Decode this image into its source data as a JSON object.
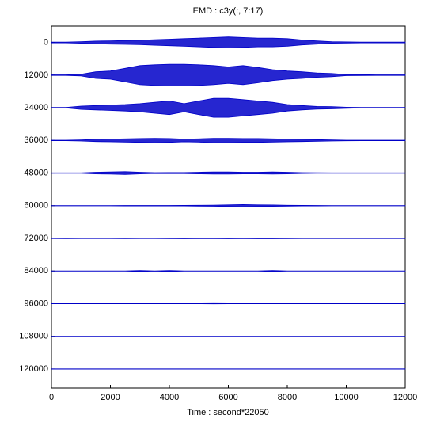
{
  "chart_data": {
    "type": "envelope",
    "title": "EMD : c3y(:, 7:17)",
    "x_label": "Time : second*22050",
    "x": [
      0,
      500,
      1000,
      1500,
      2000,
      2500,
      3000,
      3500,
      4000,
      4500,
      5000,
      5500,
      6000,
      6500,
      7000,
      7500,
      8000,
      8500,
      9000,
      9500,
      10000,
      10500,
      11000,
      11500,
      12000
    ],
    "color": "#0000c8",
    "series": [
      {
        "values": [
          150,
          150,
          300,
          500,
          600,
          700,
          800,
          1000,
          1200,
          1400,
          1600,
          1800,
          2000,
          1800,
          1600,
          1600,
          1400,
          900,
          600,
          300,
          200,
          150,
          150,
          150,
          150
        ]
      },
      {
        "values": [
          100,
          100,
          300,
          1200,
          1500,
          2500,
          3500,
          3800,
          4000,
          4000,
          3800,
          3500,
          3000,
          3500,
          2800,
          2000,
          1500,
          1200,
          800,
          600,
          200,
          150,
          100,
          100,
          100
        ]
      },
      {
        "values": [
          100,
          100,
          600,
          800,
          1000,
          1200,
          1500,
          2000,
          2500,
          1500,
          2500,
          3500,
          3500,
          3000,
          2500,
          2000,
          1200,
          800,
          500,
          400,
          200,
          100,
          100,
          100,
          100
        ]
      },
      {
        "values": [
          80,
          80,
          200,
          400,
          500,
          600,
          700,
          800,
          700,
          500,
          600,
          800,
          800,
          700,
          700,
          600,
          500,
          400,
          300,
          200,
          100,
          80,
          80,
          80,
          80
        ]
      },
      {
        "values": [
          80,
          80,
          80,
          300,
          400,
          500,
          300,
          150,
          200,
          200,
          300,
          400,
          400,
          300,
          300,
          400,
          300,
          150,
          100,
          80,
          80,
          80,
          80,
          80,
          80
        ]
      },
      {
        "values": [
          60,
          60,
          60,
          60,
          60,
          80,
          80,
          80,
          80,
          100,
          150,
          200,
          300,
          400,
          300,
          250,
          150,
          100,
          80,
          60,
          60,
          60,
          60,
          60,
          60
        ]
      },
      {
        "values": [
          60,
          100,
          60,
          60,
          60,
          100,
          60,
          60,
          100,
          150,
          100,
          100,
          150,
          100,
          150,
          150,
          100,
          60,
          60,
          60,
          60,
          60,
          60,
          60,
          60
        ]
      },
      {
        "values": [
          40,
          40,
          40,
          40,
          40,
          40,
          150,
          40,
          150,
          40,
          40,
          40,
          40,
          40,
          40,
          150,
          40,
          40,
          40,
          40,
          40,
          40,
          40,
          40,
          40
        ]
      },
      {
        "values": [
          30,
          30,
          30,
          30,
          30,
          30,
          30,
          30,
          30,
          30,
          30,
          60,
          30,
          30,
          30,
          30,
          30,
          30,
          30,
          30,
          30,
          30,
          30,
          30,
          30
        ]
      },
      {
        "values": [
          30,
          30,
          30,
          30,
          30,
          30,
          30,
          30,
          30,
          30,
          30,
          30,
          30,
          30,
          30,
          30,
          30,
          30,
          30,
          30,
          30,
          30,
          30,
          30,
          30
        ]
      },
      {
        "values": [
          30,
          30,
          30,
          30,
          30,
          30,
          30,
          30,
          30,
          30,
          30,
          30,
          30,
          30,
          30,
          30,
          30,
          30,
          30,
          30,
          30,
          30,
          30,
          30,
          30
        ]
      }
    ],
    "xlim": [
      0,
      12000
    ],
    "xticks": [
      0,
      2000,
      4000,
      6000,
      8000,
      10000,
      12000
    ],
    "ylim": [
      127000,
      -6000
    ],
    "yticks": [
      0,
      12000,
      24000,
      36000,
      48000,
      60000,
      72000,
      84000,
      96000,
      108000,
      120000
    ]
  }
}
